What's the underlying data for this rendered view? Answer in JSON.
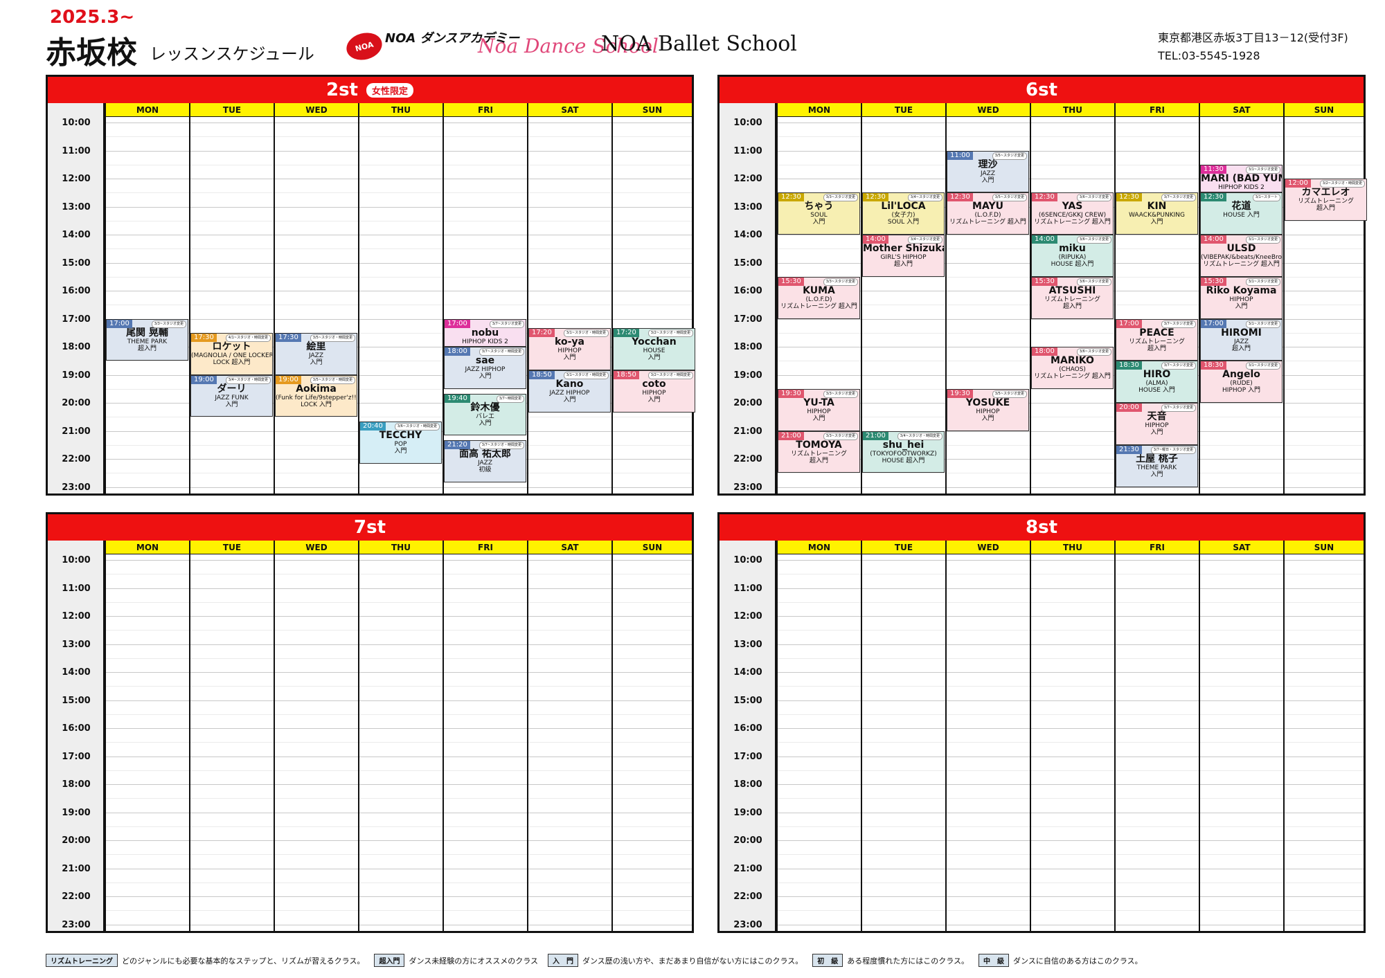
{
  "header": {
    "date": "2025.3~",
    "school": "赤坂校",
    "subtitle": "レッスンスケジュール",
    "logos": [
      "NOA ダンスアカデミー",
      "Noa Dance School",
      "NOA Ballet School"
    ],
    "address": "東京都港区赤坂3丁目13－12(受付3F)",
    "tel": "TEL:03-5545-1928"
  },
  "days": [
    "MON",
    "TUE",
    "WED",
    "THU",
    "FRI",
    "SAT",
    "SUN"
  ],
  "times": [
    "10:00",
    "11:00",
    "12:00",
    "13:00",
    "14:00",
    "15:00",
    "16:00",
    "17:00",
    "18:00",
    "19:00",
    "20:00",
    "21:00",
    "22:00",
    "23:00"
  ],
  "colors": {
    "yellow": "#f7efb2",
    "yellow_t": "#c9a800",
    "pink": "#fbe1e6",
    "pink_t": "#e0566e",
    "blue": "#dde5f0",
    "blue_t": "#5578b2",
    "teal": "#d3ece6",
    "teal_t": "#2c8a72",
    "cyan": "#d6eef6",
    "cyan_t": "#3a9ec0",
    "magenta": "#f9dff0",
    "magenta_t": "#dd2e9a",
    "orange": "#fde9c9",
    "orange_t": "#e59a20",
    "green": "#dbeedb",
    "green_t": "#35975a",
    "grey": "#e8e8e8",
    "grey_t": "#999999"
  },
  "panels": [
    {
      "title": "2st",
      "badge": "女性限定",
      "lessons": [
        {
          "day": 0,
          "start": "17:00",
          "end": "18:30",
          "time": "17:00",
          "note": "3/3~スタジオ変更",
          "name": "尾関 晃輔",
          "genre": "THEME PARK",
          "level": "超入門",
          "color": "blue"
        },
        {
          "day": 1,
          "start": "17:30",
          "end": "19:00",
          "time": "17:30",
          "note": "4/1~スタジオ・時間変更",
          "name": "ロケット",
          "genre": "(MAGNOLIA / ONE LOCKERS)",
          "level": "LOCK 超入門",
          "color": "orange"
        },
        {
          "day": 1,
          "start": "19:00",
          "end": "20:30",
          "time": "19:00",
          "note": "3/4~スタジオ・時間変更",
          "name": "ダーリ",
          "genre": "JAZZ FUNK",
          "level": "入門",
          "color": "blue"
        },
        {
          "day": 2,
          "start": "17:30",
          "end": "19:00",
          "time": "17:30",
          "note": "3/5~スタジオ・時間変更",
          "name": "絵里",
          "genre": "JAZZ",
          "level": "入門",
          "color": "blue"
        },
        {
          "day": 2,
          "start": "19:00",
          "end": "20:30",
          "time": "19:00",
          "note": "3/5~スタジオ・時間変更",
          "name": "Aokima",
          "genre": "(Funk for Life/9stepper'z!!)",
          "level": "LOCK 入門",
          "color": "orange"
        },
        {
          "day": 3,
          "start": "20:40",
          "end": "22:10",
          "time": "20:40",
          "note": "3/6~スタジオ・時間変更",
          "name": "TECCHY",
          "genre": "POP",
          "level": "入門",
          "color": "cyan"
        },
        {
          "day": 4,
          "start": "17:00",
          "end": "18:00",
          "time": "17:00",
          "note": "3/7~スタジオ変更",
          "name": "nobu",
          "genre": "HIPHOP KIDS 2",
          "level": "",
          "color": "magenta"
        },
        {
          "day": 4,
          "start": "18:00",
          "end": "19:30",
          "time": "18:00",
          "note": "3/7~スタジオ・時間変更",
          "name": "sae",
          "genre": "JAZZ HIPHOP",
          "level": "入門",
          "color": "blue"
        },
        {
          "day": 4,
          "start": "19:40",
          "end": "21:10",
          "time": "19:40",
          "note": "3/7~時間変更",
          "name": "鈴木優",
          "genre": "バレエ",
          "level": "入門",
          "color": "teal"
        },
        {
          "day": 4,
          "start": "21:20",
          "end": "22:50",
          "time": "21:20",
          "note": "3/7~スタジオ・時間変更",
          "name": "面高 祐太郎",
          "genre": "JAZZ",
          "level": "初級",
          "color": "blue"
        },
        {
          "day": 5,
          "start": "17:20",
          "end": "18:50",
          "time": "17:20",
          "note": "3/1~スタジオ・時間変更",
          "name": "ko-ya",
          "genre": "HIPHOP",
          "level": "入門",
          "color": "pink"
        },
        {
          "day": 5,
          "start": "18:50",
          "end": "20:20",
          "time": "18:50",
          "note": "3/1~スタジオ・時間変更",
          "name": "Kano",
          "genre": "JAZZ HIPHOP",
          "level": "入門",
          "color": "blue"
        },
        {
          "day": 6,
          "start": "17:20",
          "end": "18:50",
          "time": "17:20",
          "note": "3/2~スタジオ・時間変更",
          "name": "Yocchan",
          "genre": "HOUSE",
          "level": "入門",
          "color": "teal"
        },
        {
          "day": 6,
          "start": "18:50",
          "end": "20:20",
          "time": "18:50",
          "note": "3/2~スタジオ・時間変更",
          "name": "coto",
          "genre": "HIPHOP",
          "level": "入門",
          "color": "pink"
        }
      ]
    },
    {
      "title": "6st",
      "badge": "",
      "lessons": [
        {
          "day": 0,
          "start": "12:30",
          "end": "14:00",
          "time": "12:30",
          "note": "3/3~スタジオ変更",
          "name": "ちゃう",
          "genre": "SOUL",
          "level": "入門",
          "color": "yellow"
        },
        {
          "day": 0,
          "start": "15:30",
          "end": "17:00",
          "time": "15:30",
          "note": "3/3~スタジオ変更",
          "name": "KUMA",
          "genre": "(L.O.F.D)",
          "level": "リズムトレーニング 超入門",
          "color": "pink"
        },
        {
          "day": 0,
          "start": "19:30",
          "end": "21:00",
          "time": "19:30",
          "note": "3/3~スタジオ変更",
          "name": "YU-TA",
          "genre": "HIPHOP",
          "level": "入門",
          "color": "pink"
        },
        {
          "day": 0,
          "start": "21:00",
          "end": "22:30",
          "time": "21:00",
          "note": "3/3~スタジオ変更",
          "name": "TOMOYA",
          "genre": "リズムトレーニング",
          "level": "超入門",
          "color": "pink"
        },
        {
          "day": 1,
          "start": "12:30",
          "end": "14:00",
          "time": "12:30",
          "note": "3/4~スタジオ変更",
          "name": "Lil'LOCA",
          "genre": "(女子力)",
          "level": "SOUL 入門",
          "color": "yellow"
        },
        {
          "day": 1,
          "start": "14:00",
          "end": "15:30",
          "time": "14:00",
          "note": "3/4~スタジオ変更",
          "name": "Mother Shizuka",
          "genre": "GIRL'S HIPHOP",
          "level": "超入門",
          "color": "pink"
        },
        {
          "day": 1,
          "start": "21:00",
          "end": "22:30",
          "time": "21:00",
          "note": "3/4~スタジオ・時間変更",
          "name": "shu_hei",
          "genre": "(TOKYOFOOTWORKZ)",
          "level": "HOUSE 超入門",
          "color": "teal"
        },
        {
          "day": 2,
          "start": "11:00",
          "end": "12:30",
          "time": "11:00",
          "note": "3/5~スタジオ変更",
          "name": "理沙",
          "genre": "JAZZ",
          "level": "入門",
          "color": "blue"
        },
        {
          "day": 2,
          "start": "12:30",
          "end": "14:00",
          "time": "12:30",
          "note": "3/5~スタジオ変更",
          "name": "MAYU",
          "genre": "(L.O.F.D)",
          "level": "リズムトレーニング 超入門",
          "color": "pink"
        },
        {
          "day": 2,
          "start": "19:30",
          "end": "21:00",
          "time": "19:30",
          "note": "3/5~スタジオ変更",
          "name": "YOSUKE",
          "genre": "HIPHOP",
          "level": "入門",
          "color": "pink"
        },
        {
          "day": 3,
          "start": "12:30",
          "end": "14:00",
          "time": "12:30",
          "note": "3/6~スタジオ変更",
          "name": "YAS",
          "genre": "(6SENCE/GKKJ CREW)",
          "level": "リズムトレーニング 超入門",
          "color": "pink"
        },
        {
          "day": 3,
          "start": "14:00",
          "end": "15:30",
          "time": "14:00",
          "note": "3/6~スタジオ変更",
          "name": "miku",
          "genre": "(RIPUKA)",
          "level": "HOUSE 超入門",
          "color": "teal"
        },
        {
          "day": 3,
          "start": "15:30",
          "end": "17:00",
          "time": "15:30",
          "note": "3/6~スタジオ変更",
          "name": "ATSUSHI",
          "genre": "リズムトレーニング",
          "level": "超入門",
          "color": "pink"
        },
        {
          "day": 3,
          "start": "18:00",
          "end": "19:30",
          "time": "18:00",
          "note": "3/6~スタジオ変更",
          "name": "MARIKO",
          "genre": "(CHAOS)",
          "level": "リズムトレーニング 超入門",
          "color": "pink"
        },
        {
          "day": 4,
          "start": "12:30",
          "end": "14:00",
          "time": "12:30",
          "note": "3/7~スタジオ変更",
          "name": "KIN",
          "genre": "WAACK&PUNKING",
          "level": "入門",
          "color": "yellow"
        },
        {
          "day": 4,
          "start": "17:00",
          "end": "18:30",
          "time": "17:00",
          "note": "3/7~スタジオ変更",
          "name": "PEACE",
          "genre": "リズムトレーニング",
          "level": "超入門",
          "color": "pink"
        },
        {
          "day": 4,
          "start": "18:30",
          "end": "20:00",
          "time": "18:30",
          "note": "3/7~スタジオ変更",
          "name": "HIRO",
          "genre": "(ALMA)",
          "level": "HOUSE 入門",
          "color": "teal"
        },
        {
          "day": 4,
          "start": "20:00",
          "end": "21:30",
          "time": "20:00",
          "note": "3/7~スタジオ変更",
          "name": "天音",
          "genre": "HIPHOP",
          "level": "入門",
          "color": "pink"
        },
        {
          "day": 4,
          "start": "21:30",
          "end": "23:00",
          "time": "21:30",
          "note": "3/7~曜日・スタジオ変更",
          "name": "土屋 桃子",
          "genre": "THEME PARK",
          "level": "入門",
          "color": "blue"
        },
        {
          "day": 5,
          "start": "11:30",
          "end": "12:30",
          "time": "11:30",
          "note": "3/1~スタジオ変更",
          "name": "MARI (BAD YUM)",
          "genre": "HIPHOP KIDS 2",
          "level": "",
          "color": "magenta"
        },
        {
          "day": 5,
          "start": "12:30",
          "end": "14:00",
          "time": "12:30",
          "note": "3/1~スタート",
          "name": "花道",
          "genre": "HOUSE 入門",
          "level": "",
          "color": "teal"
        },
        {
          "day": 5,
          "start": "14:00",
          "end": "15:30",
          "time": "14:00",
          "note": "3/1~スタジオ変更",
          "name": "ULSD",
          "genre": "(VIBEPAK/&beats/KneeBro/humo)",
          "level": "リズムトレーニング 超入門",
          "color": "pink"
        },
        {
          "day": 5,
          "start": "15:30",
          "end": "17:00",
          "time": "15:30",
          "note": "3/1~スタジオ変更",
          "name": "Riko Koyama",
          "genre": "HIPHOP",
          "level": "入門",
          "color": "pink"
        },
        {
          "day": 5,
          "start": "17:00",
          "end": "18:30",
          "time": "17:00",
          "note": "3/1~スタジオ変更",
          "name": "HIROMI",
          "genre": "JAZZ",
          "level": "超入門",
          "color": "blue"
        },
        {
          "day": 5,
          "start": "18:30",
          "end": "20:00",
          "time": "18:30",
          "note": "3/1~スタジオ変更",
          "name": "Angelo",
          "genre": "(RUDE)",
          "level": "HIPHOP 入門",
          "color": "pink"
        },
        {
          "day": 6,
          "start": "12:00",
          "end": "13:30",
          "time": "12:00",
          "note": "3/2~スタジオ・時間変更",
          "name": "カマエレオ",
          "genre": "リズムトレーニング",
          "level": "超入門",
          "color": "pink"
        }
      ]
    },
    {
      "title": "7st",
      "badge": "",
      "lessons": []
    },
    {
      "title": "8st",
      "badge": "",
      "lessons": []
    }
  ],
  "legend": [
    {
      "tag": "リズムトレーニング",
      "text": "どのジャンルにも必要な基本的なステップと、リズムが習えるクラス。"
    },
    {
      "tag": "超入門",
      "text": "ダンス未経験の方にオススメのクラス"
    },
    {
      "tag": "入　門",
      "text": "ダンス歴の浅い方や、まだあまり自信がない方にはこのクラス。"
    },
    {
      "tag": "初　級",
      "text": "ある程度慣れた方にはこのクラス。"
    },
    {
      "tag": "中　級",
      "text": "ダンスに自信のある方はこのクラス。"
    }
  ]
}
